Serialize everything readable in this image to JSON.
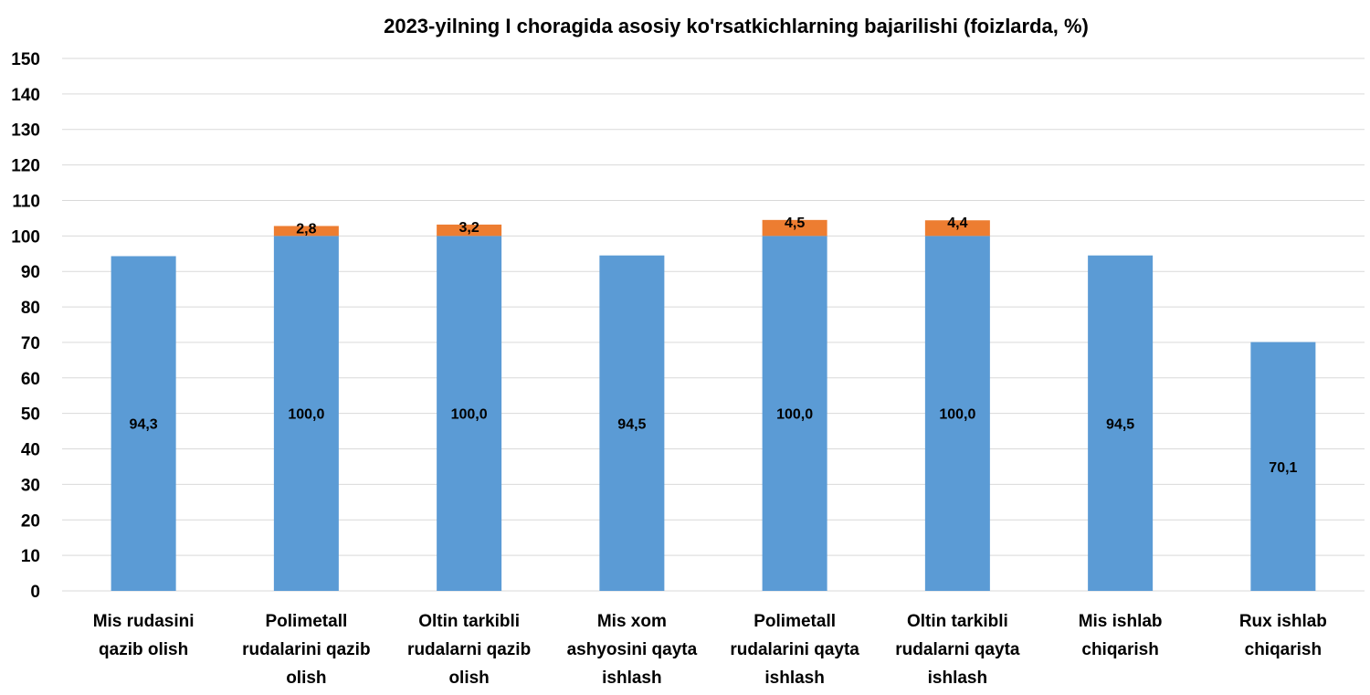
{
  "chart_data": {
    "type": "bar",
    "stacked": true,
    "title": "2023-yilning I choragida asosiy ko'rsatkichlarning bajarilishi (foizlarda, %)",
    "xlabel": "",
    "ylabel": "",
    "ylim": [
      0,
      150
    ],
    "yticks": [
      0,
      10,
      20,
      30,
      40,
      50,
      60,
      70,
      80,
      90,
      100,
      110,
      120,
      130,
      140,
      150
    ],
    "grid": true,
    "legend": "none",
    "categories": [
      [
        "Mis rudasini",
        "qazib olish"
      ],
      [
        "Polimetall",
        "rudalarini qazib",
        "olish"
      ],
      [
        "Oltin tarkibli",
        "rudalarni qazib",
        "olish"
      ],
      [
        "Mis xom",
        "ashyosini qayta",
        "ishlash"
      ],
      [
        "Polimetall",
        "rudalarini qayta",
        "ishlash"
      ],
      [
        "Oltin tarkibli",
        "rudalarni qayta",
        "ishlash"
      ],
      [
        "Mis ishlab",
        "chiqarish"
      ],
      [
        "Rux ishlab",
        "chiqarish"
      ]
    ],
    "series": [
      {
        "color": "#5b9bd5",
        "values": [
          94.3,
          100.0,
          100.0,
          94.5,
          100.0,
          100.0,
          94.5,
          70.1
        ],
        "labels": [
          "94,3",
          "100,0",
          "100,0",
          "94,5",
          "100,0",
          "100,0",
          "94,5",
          "70,1"
        ]
      },
      {
        "color": "#ed7d31",
        "values": [
          null,
          2.8,
          3.2,
          null,
          4.5,
          4.4,
          null,
          null
        ],
        "labels": [
          "",
          "2,8",
          "3,2",
          "",
          "4,5",
          "4,4",
          "",
          ""
        ]
      }
    ]
  }
}
